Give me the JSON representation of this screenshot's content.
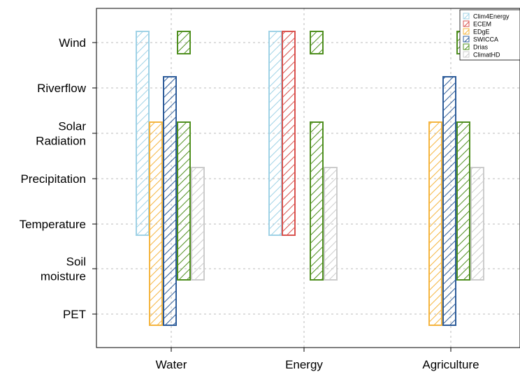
{
  "chart_data": {
    "type": "bar",
    "subtype": "floating-range-bar",
    "categories": [
      "Water",
      "Energy",
      "Agriculture"
    ],
    "y_levels": [
      "PET",
      "Soil moisture",
      "Temperature",
      "Precipitation",
      "Solar Radiation",
      "Riverflow",
      "Wind"
    ],
    "y_tick_labels": [
      {
        "level": "PET",
        "lines": [
          "PET"
        ]
      },
      {
        "level": "Soil moisture",
        "lines": [
          "Soil",
          "moisture"
        ]
      },
      {
        "level": "Temperature",
        "lines": [
          "Temperature"
        ]
      },
      {
        "level": "Precipitation",
        "lines": [
          "Precipitation"
        ]
      },
      {
        "level": "Solar Radiation",
        "lines": [
          "Solar",
          "Radiation"
        ]
      },
      {
        "level": "Riverflow",
        "lines": [
          "Riverflow"
        ]
      },
      {
        "level": "Wind",
        "lines": [
          "Wind"
        ]
      }
    ],
    "series": [
      {
        "name": "Clim4Energy",
        "color": "#9fd2e6",
        "ranges": {
          "Water": [
            "Temperature",
            "Wind"
          ],
          "Energy": [
            "Temperature",
            "Wind"
          ]
        }
      },
      {
        "name": "ECEM",
        "color": "#d9534f",
        "ranges": {
          "Energy": [
            "Temperature",
            "Wind"
          ]
        }
      },
      {
        "name": "EDgE",
        "color": "#f5b53f",
        "ranges": {
          "Water": [
            "PET",
            "Solar Radiation"
          ],
          "Agriculture": [
            "PET",
            "Solar Radiation"
          ]
        }
      },
      {
        "name": "SWICCA",
        "color": "#2d5c9a",
        "ranges": {
          "Water": [
            "PET",
            "Riverflow"
          ],
          "Agriculture": [
            "PET",
            "Riverflow"
          ]
        }
      },
      {
        "name": "Drias",
        "color": "#4f8f1f",
        "ranges": {
          "Water": [
            "Soil moisture",
            "Solar Radiation"
          ],
          "Energy": [
            "Soil moisture",
            "Solar Radiation"
          ],
          "Agriculture": [
            "Soil moisture",
            "Solar Radiation"
          ]
        },
        "extra_ranges": {
          "Water": [
            "Wind",
            "Wind"
          ],
          "Energy": [
            "Wind",
            "Wind"
          ],
          "Agriculture": [
            "Wind",
            "Wind"
          ]
        }
      },
      {
        "name": "ClimatHD",
        "color": "#cccccc",
        "ranges": {
          "Water": [
            "Soil moisture",
            "Precipitation"
          ],
          "Energy": [
            "Soil moisture",
            "Precipitation"
          ],
          "Agriculture": [
            "Soil moisture",
            "Precipitation"
          ]
        }
      }
    ],
    "fill_pattern": "diagonal-hatch",
    "grid": true,
    "legend_position": "top-right"
  }
}
